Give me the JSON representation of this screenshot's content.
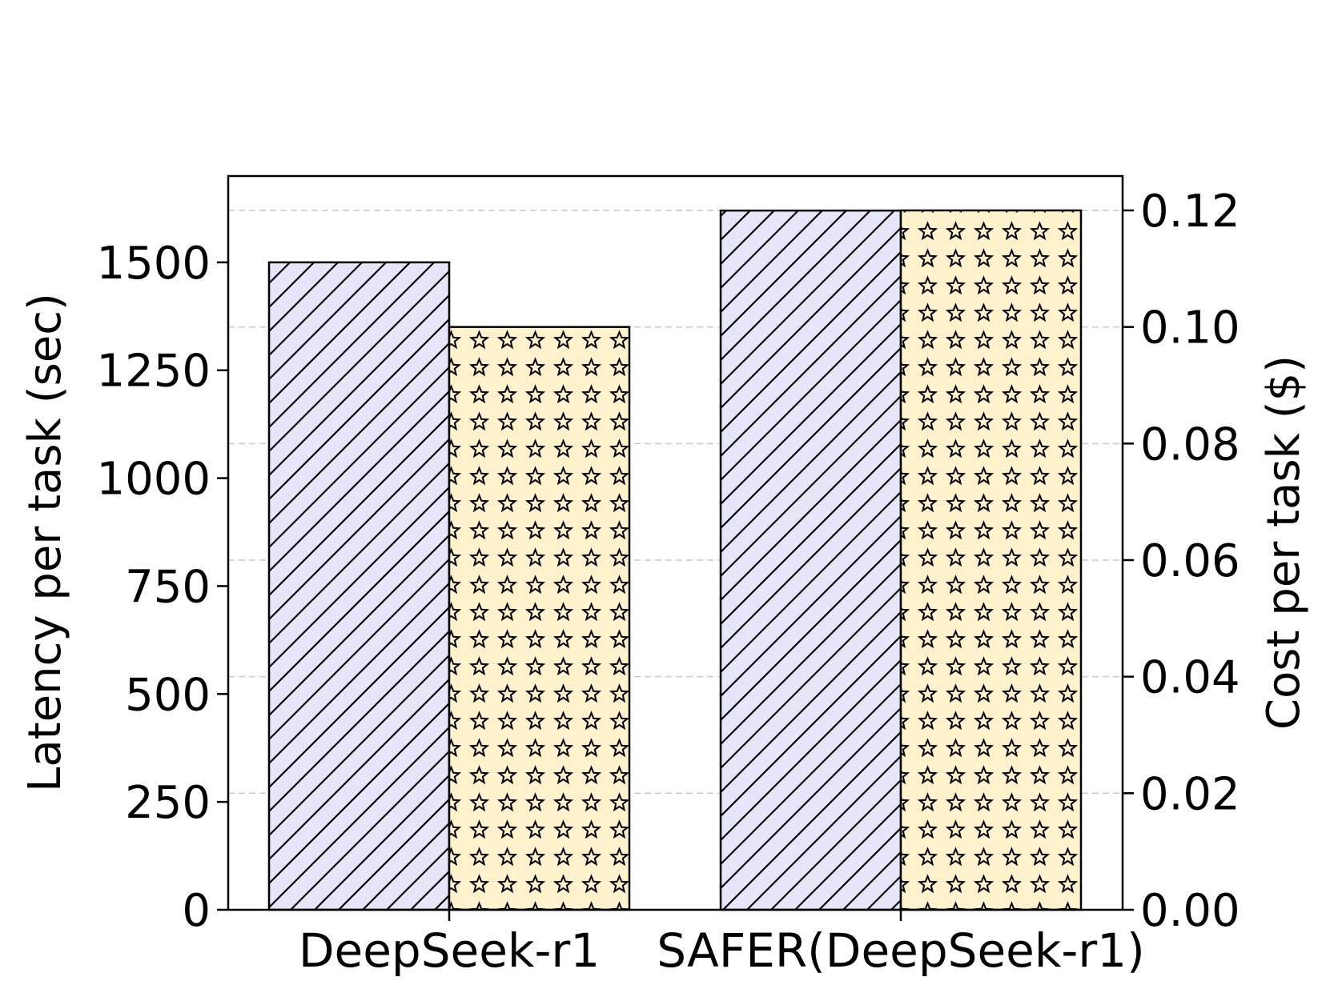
{
  "chart_data": {
    "type": "bar",
    "categories": [
      "DeepSeek-r1",
      "SAFER(DeepSeek-r1)"
    ],
    "series": [
      {
        "axis": "left",
        "values": [
          1500,
          1620
        ],
        "color": "#e6e6fa",
        "hatch": "diagonal"
      },
      {
        "axis": "right",
        "values": [
          0.1,
          0.12
        ],
        "color": "#fff2cc",
        "hatch": "stars"
      }
    ],
    "ylabel": "Latency per task (sec)",
    "ylabel_right": "Cost per task ($)",
    "ylim": [
      0,
      1700
    ],
    "ylim_right": [
      0,
      0.1259
    ],
    "yticks": [
      "0",
      "250",
      "500",
      "750",
      "1000",
      "1250",
      "1500"
    ],
    "yticks_right": [
      "0.00",
      "0.02",
      "0.04",
      "0.06",
      "0.08",
      "0.10",
      "0.12"
    ],
    "grid": "horizontal dashed on right-axis ticks"
  }
}
